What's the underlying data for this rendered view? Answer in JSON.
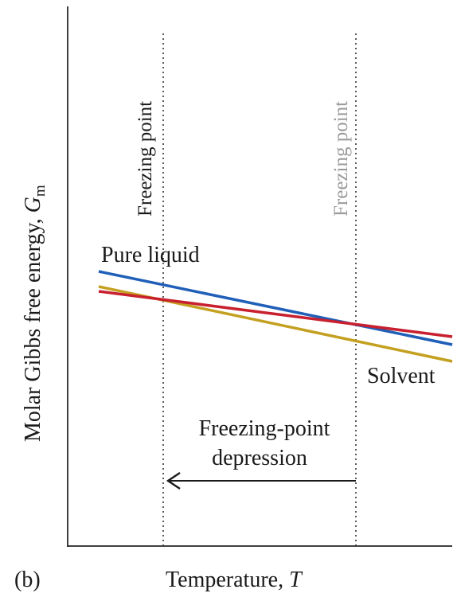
{
  "panel_label": "(b)",
  "axes": {
    "y_label_main": "Molar Gibbs free energy, ",
    "y_label_symbol": "G",
    "y_label_subscript": "m",
    "x_label_main": "Temperature, ",
    "x_label_symbol": "T"
  },
  "markers": {
    "freezing_point_left": "Freezing point",
    "freezing_point_right": "Freezing point"
  },
  "labels": {
    "pure_liquid": "Pure liquid",
    "solvent": "Solvent",
    "depression_line1": "Freezing-point",
    "depression_line2": "depression"
  },
  "colors": {
    "pure_liquid_line": "#1f5fb8",
    "solution_line": "#c4a020",
    "solid_line": "#c8202e",
    "axis": "#000000",
    "marker_right_text": "#9a9a9a",
    "text": "#1a1a1a"
  },
  "icons": {
    "arrow": "left-arrow"
  }
}
